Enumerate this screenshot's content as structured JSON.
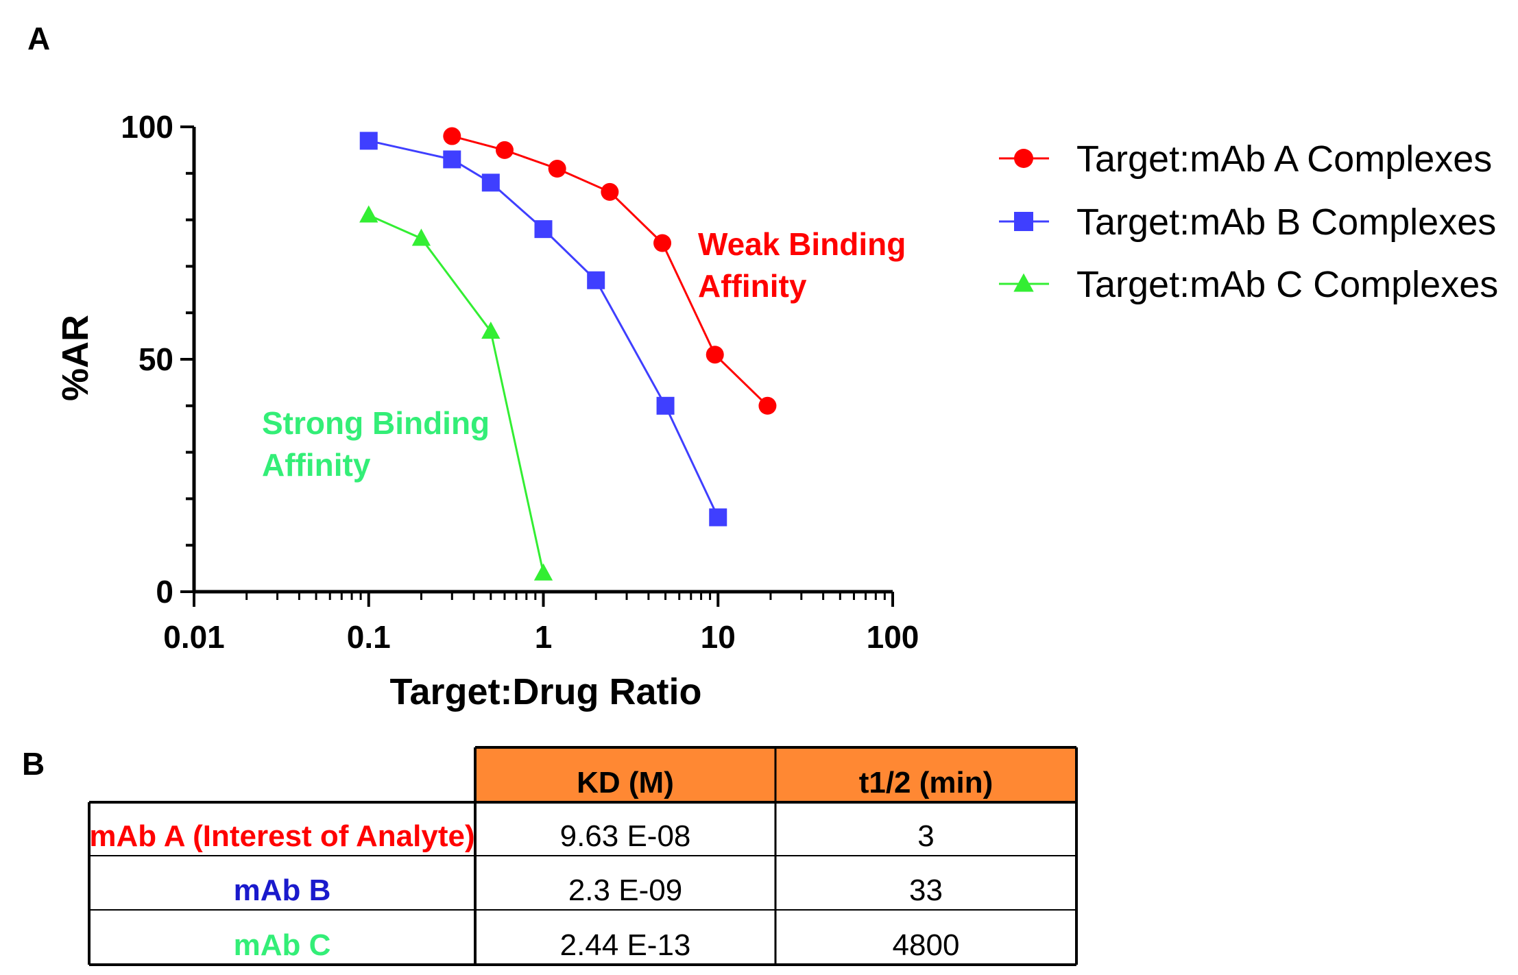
{
  "panel_a_label": "A",
  "panel_b_label": "B",
  "chart_data": {
    "type": "line",
    "xscale": "log",
    "xlim": [
      0.01,
      100
    ],
    "ylim": [
      0,
      100
    ],
    "xticks": [
      0.01,
      0.1,
      1,
      10,
      100
    ],
    "xtick_labels": [
      "0.01",
      "0.1",
      "1",
      "10",
      "100"
    ],
    "yticks": [
      0,
      50,
      100
    ],
    "ytick_labels": [
      "0",
      "50",
      "100"
    ],
    "xlabel": "Target:Drug Ratio",
    "ylabel": "%AR",
    "grid": false,
    "legend_position": "right",
    "series": [
      {
        "name": "Target:mAb A Complexes",
        "color": "#ff0000",
        "marker": "circle",
        "x": [
          0.3,
          0.6,
          1.2,
          2.4,
          4.8,
          9.6,
          19.2
        ],
        "y": [
          98,
          95,
          91,
          86,
          75,
          51,
          40
        ]
      },
      {
        "name": "Target:mAb B Complexes",
        "color": "#3f3fff",
        "marker": "square",
        "x": [
          0.1,
          0.3,
          0.5,
          1,
          2,
          5,
          10
        ],
        "y": [
          97,
          93,
          88,
          78,
          67,
          40,
          16
        ]
      },
      {
        "name": "Target:mAb C Complexes",
        "color": "#33ee33",
        "marker": "triangle",
        "x": [
          0.1,
          0.2,
          0.5,
          1
        ],
        "y": [
          81,
          76,
          56,
          4
        ]
      }
    ],
    "annotations": [
      {
        "lines": [
          "Weak Binding",
          "Affinity"
        ],
        "color": "#ff0000"
      },
      {
        "lines": [
          "Strong Binding",
          "Affinity"
        ],
        "color": "#33ee77"
      }
    ]
  },
  "table": {
    "header_color": "#ff8833",
    "columns": [
      "KD (M)",
      "t1/2 (min)"
    ],
    "rows": [
      {
        "label": "mAb A (Interest of Analyte)",
        "color": "#ff0000",
        "kd": "9.63 E-08",
        "t_half": "3"
      },
      {
        "label": "mAb B",
        "color": "#1a1acc",
        "kd": "2.3 E-09",
        "t_half": "33"
      },
      {
        "label": "mAb C",
        "color": "#33ee77",
        "kd": "2.44 E-13",
        "t_half": "4800"
      }
    ]
  }
}
